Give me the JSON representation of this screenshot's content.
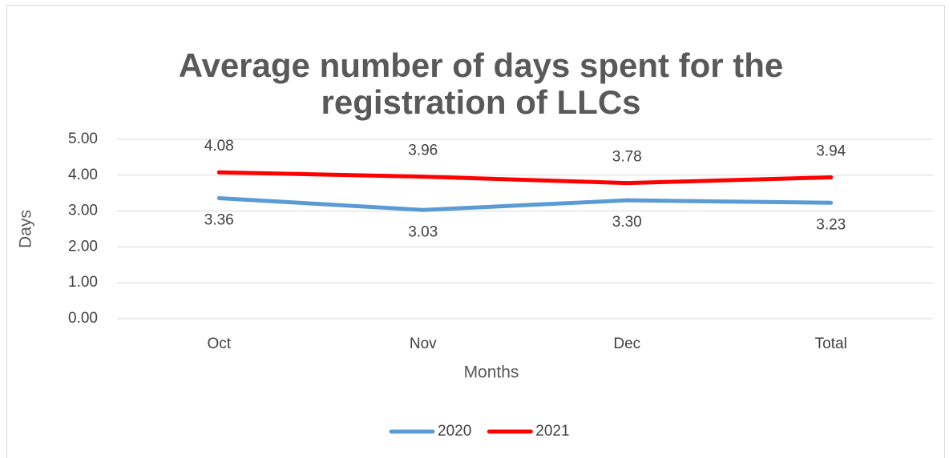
{
  "chart_data": {
    "type": "line",
    "title": [
      "Average number of days spent for the",
      "registration of LLCs"
    ],
    "x_label": "Months",
    "y_label": "Days",
    "categories": [
      "Oct",
      "Nov",
      "Dec",
      "Total"
    ],
    "series": [
      {
        "name": "2020",
        "color": "#5b9bd5",
        "values": [
          3.36,
          3.03,
          3.3,
          3.23
        ],
        "value_labels": [
          "3.36",
          "3.03",
          "3.30",
          "3.23"
        ]
      },
      {
        "name": "2021",
        "color": "#ff0000",
        "values": [
          4.08,
          3.96,
          3.78,
          3.94
        ],
        "value_labels": [
          "4.08",
          "3.96",
          "3.78",
          "3.94"
        ]
      }
    ],
    "ylim": [
      0,
      5
    ],
    "yticks": [
      {
        "value": 0,
        "label": "0.00"
      },
      {
        "value": 1,
        "label": "1.00"
      },
      {
        "value": 2,
        "label": "2.00"
      },
      {
        "value": 3,
        "label": "3.00"
      },
      {
        "value": 4,
        "label": "4.00"
      },
      {
        "value": 5,
        "label": "5.00"
      }
    ],
    "grid": true,
    "legend": "bottom"
  }
}
